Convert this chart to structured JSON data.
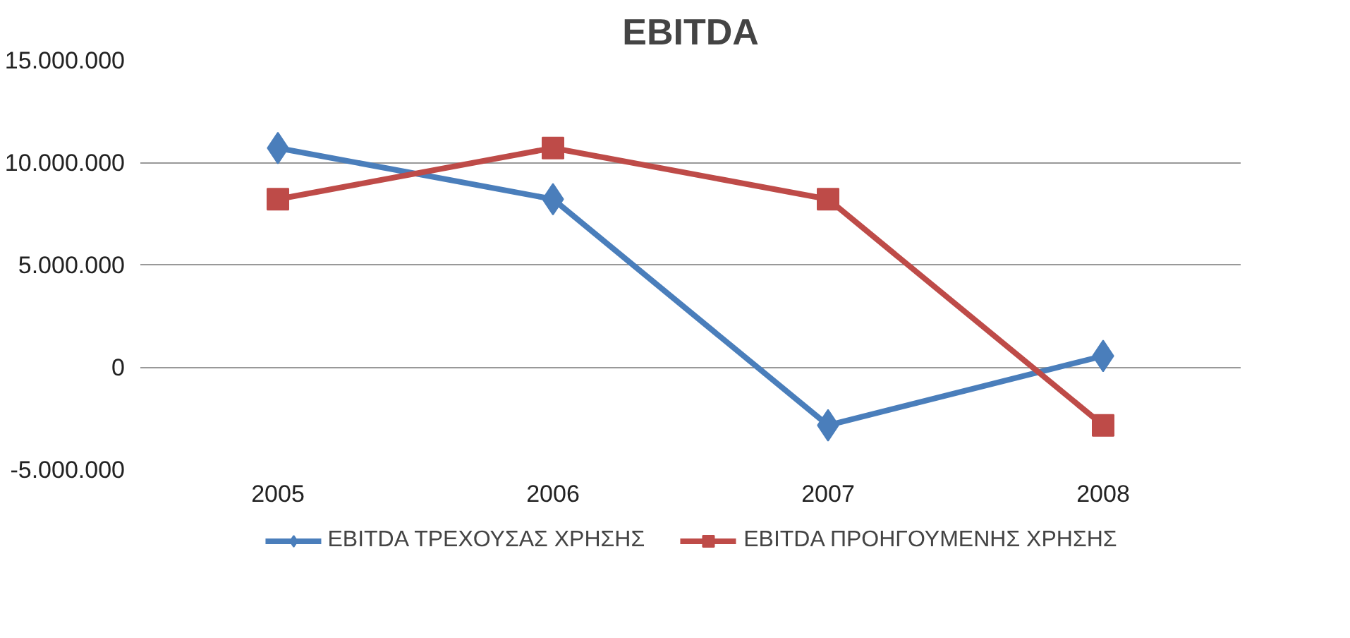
{
  "chart_data": {
    "type": "line",
    "title": "EBITDA",
    "categories": [
      "2005",
      "2006",
      "2007",
      "2008"
    ],
    "series": [
      {
        "name": "EBITDA ΤΡΕΧΟΥΣΑΣ ΧΡΗΣΗΣ",
        "color": "#4a7ebb",
        "marker": "diamond",
        "values": [
          10700000,
          8200000,
          -2850000,
          540000
        ]
      },
      {
        "name": "EBITDA ΠΡΟΗΓΟΥΜΕΝΗΣ ΧΡΗΣΗΣ",
        "color": "#be4b48",
        "marker": "square",
        "values": [
          8200000,
          10700000,
          8200000,
          -2850000
        ]
      }
    ],
    "ylim": [
      -5000000,
      15000000
    ],
    "yticks": [
      {
        "value": -5000000,
        "label": "-5.000.000"
      },
      {
        "value": 0,
        "label": "0"
      },
      {
        "value": 5000000,
        "label": "5.000.000"
      },
      {
        "value": 10000000,
        "label": "10.000.000"
      },
      {
        "value": 15000000,
        "label": "15.000.000"
      }
    ],
    "grid": "y",
    "legend": "bottom",
    "line_style": "solid"
  }
}
